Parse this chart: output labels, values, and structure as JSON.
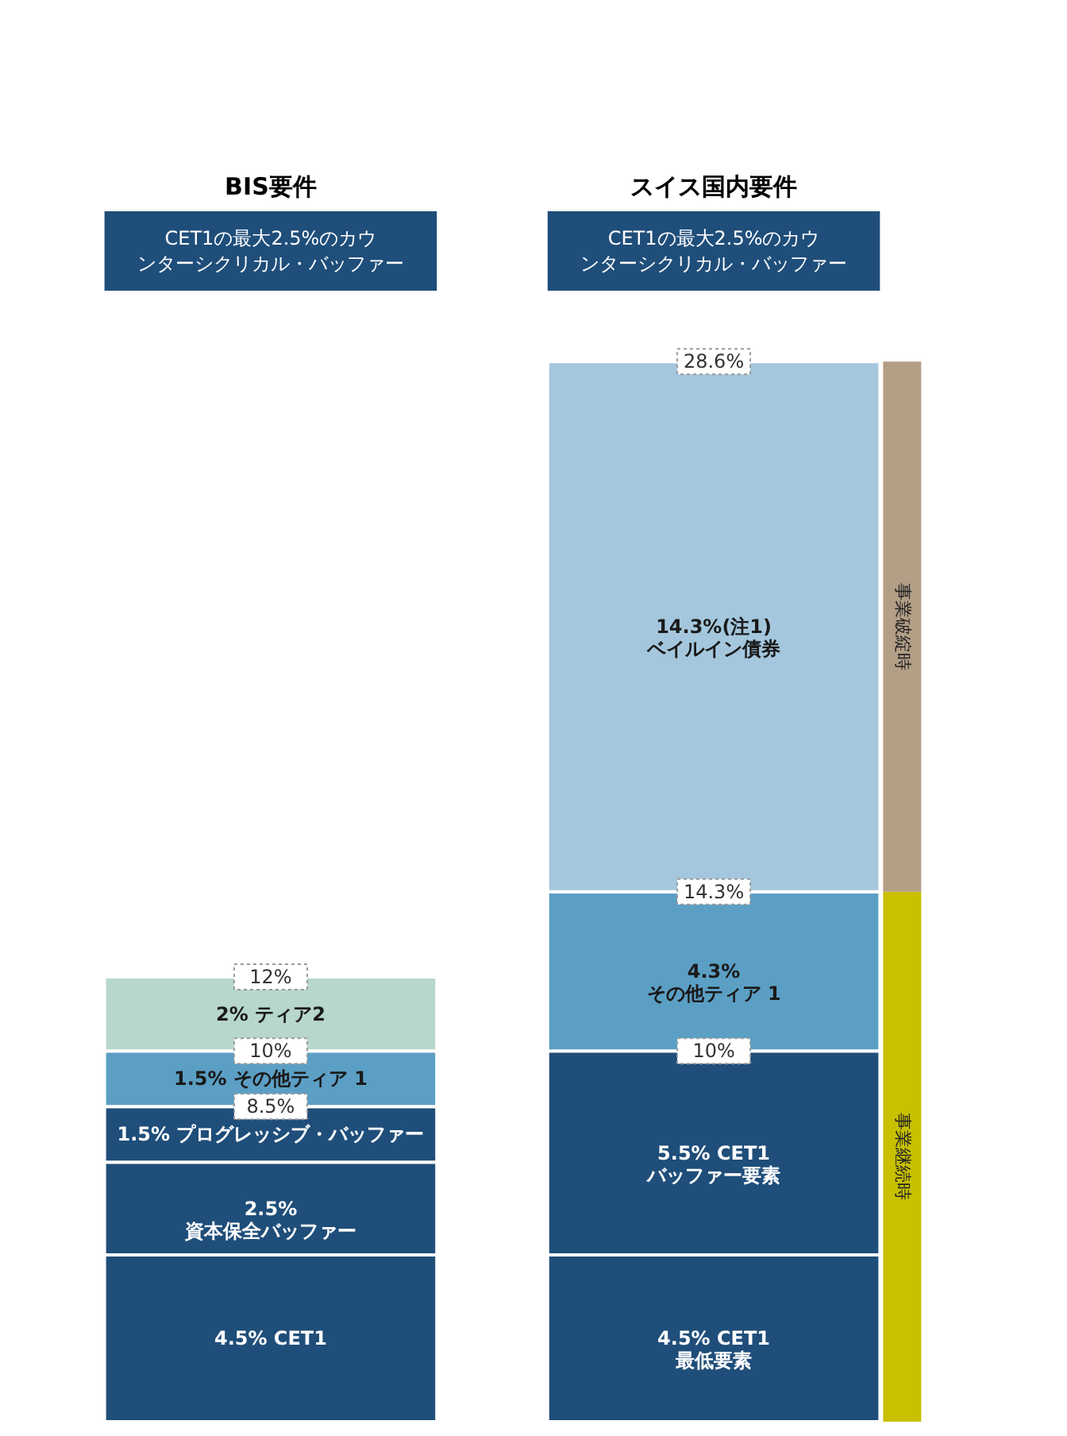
{
  "chart_data": {
    "type": "bar",
    "stacked": true,
    "categories": [
      "BIS要件",
      "スイス国内要件"
    ],
    "series": [
      {
        "color": "#1f4e7a",
        "values": [
          4.5,
          4.5
        ],
        "value_labels": [
          "4.5% CET1",
          "4.5% CET1\n最低要素"
        ]
      },
      {
        "color": "#1f4e7a",
        "values": [
          2.5,
          5.5
        ],
        "value_labels": [
          "2.5%\n資本保全バッファー",
          "5.5% CET1\nバッファー要素"
        ]
      },
      {
        "color": "#1f4e7a",
        "values": [
          1.5,
          null
        ],
        "value_labels": [
          "1.5% プログレッシブ・バッファー",
          null
        ]
      },
      {
        "color": "#5b9fc4",
        "values": [
          1.5,
          4.3
        ],
        "value_labels": [
          "1.5% その他ティア 1",
          "4.3%\nその他ティア 1"
        ]
      },
      {
        "color": "#b7d6cd",
        "values": [
          2,
          null
        ],
        "value_labels": [
          "2% ティア2",
          null
        ]
      },
      {
        "color": "#a4c7dd",
        "values": [
          null,
          14.3
        ],
        "value_labels": [
          null,
          "14.3%(注1)\nベイルイン債券"
        ]
      }
    ],
    "annotations": [
      "CET1の最大2.5%のカウンターシクリカル・バッファー",
      "CET1の最大2.5%のカウンターシクリカル・バッファー",
      {
        "text": "8.5%",
        "x": "BIS要件",
        "y": 8.5
      },
      {
        "text": "10%",
        "x": "BIS要件",
        "y": 10
      },
      {
        "text": "12%",
        "x": "BIS要件",
        "y": 12
      },
      {
        "text": "10%",
        "x": "スイス国内要件",
        "y": 10
      },
      {
        "text": "14.3%",
        "x": "スイス国内要件",
        "y": 14.3
      },
      {
        "text": "28.6%",
        "x": "スイス国内要件",
        "y": 28.6
      }
    ],
    "bands": [
      {
        "axis": "y",
        "from": 0,
        "to": 14.3,
        "label": "事業継続時",
        "color": "#c8c000"
      },
      {
        "axis": "y",
        "from": 14.3,
        "to": 28.6,
        "label": "事業破綻時",
        "color": "#b39e86"
      }
    ],
    "tick_labels": "x"
  }
}
